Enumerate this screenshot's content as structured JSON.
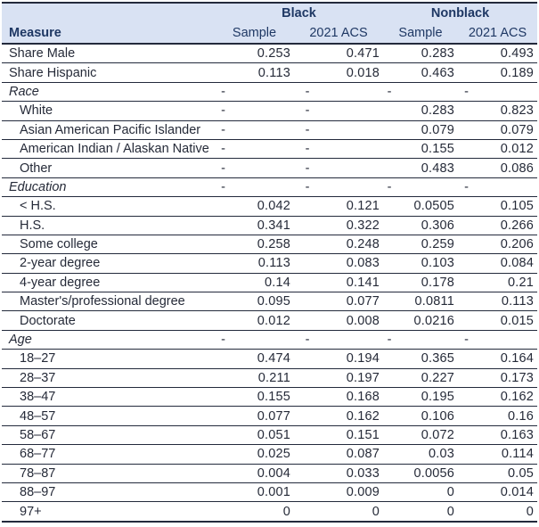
{
  "table": {
    "group_headers": [
      {
        "label": "Black"
      },
      {
        "label": "Nonblack"
      }
    ],
    "measure_header": "Measure",
    "sub_headers": [
      "Sample",
      "2021 ACS",
      "Sample",
      "2021 ACS"
    ],
    "rows": [
      {
        "label": "Share Male",
        "type": "row",
        "indent": false,
        "values": [
          "0.253",
          "0.471",
          "0.283",
          "0.493"
        ]
      },
      {
        "label": "Share Hispanic",
        "type": "row",
        "indent": false,
        "values": [
          "0.113",
          "0.018",
          "0.463",
          "0.189"
        ]
      },
      {
        "label": "Race",
        "type": "section",
        "indent": false,
        "values": [
          "-",
          "-",
          "-",
          "-"
        ]
      },
      {
        "label": "White",
        "type": "row",
        "indent": true,
        "values": [
          "-",
          "-",
          "0.283",
          "0.823"
        ]
      },
      {
        "label": "Asian American Pacific Islander",
        "type": "row",
        "indent": true,
        "values": [
          "-",
          "-",
          "0.079",
          "0.079"
        ]
      },
      {
        "label": "American Indian / Alaskan Native",
        "type": "row",
        "indent": true,
        "values": [
          "-",
          "-",
          "0.155",
          "0.012"
        ]
      },
      {
        "label": "Other",
        "type": "row",
        "indent": true,
        "values": [
          "-",
          "-",
          "0.483",
          "0.086"
        ]
      },
      {
        "label": "Education",
        "type": "section",
        "indent": false,
        "values": [
          "-",
          "-",
          "-",
          "-"
        ]
      },
      {
        "label": "< H.S.",
        "type": "row",
        "indent": true,
        "values": [
          "0.042",
          "0.121",
          "0.0505",
          "0.105"
        ]
      },
      {
        "label": "H.S.",
        "type": "row",
        "indent": true,
        "values": [
          "0.341",
          "0.322",
          "0.306",
          "0.266"
        ]
      },
      {
        "label": "Some college",
        "type": "row",
        "indent": true,
        "values": [
          "0.258",
          "0.248",
          "0.259",
          "0.206"
        ]
      },
      {
        "label": "2-year degree",
        "type": "row",
        "indent": true,
        "values": [
          "0.113",
          "0.083",
          "0.103",
          "0.084"
        ]
      },
      {
        "label": "4-year degree",
        "type": "row",
        "indent": true,
        "values": [
          "0.14",
          "0.141",
          "0.178",
          "0.21"
        ]
      },
      {
        "label": "Master's/professional degree",
        "type": "row",
        "indent": true,
        "values": [
          "0.095",
          "0.077",
          "0.0811",
          "0.113"
        ]
      },
      {
        "label": "Doctorate",
        "type": "row",
        "indent": true,
        "values": [
          "0.012",
          "0.008",
          "0.0216",
          "0.015"
        ]
      },
      {
        "label": "Age",
        "type": "section",
        "indent": false,
        "values": [
          "-",
          "-",
          "-",
          "-"
        ]
      },
      {
        "label": "18–27",
        "type": "row",
        "indent": true,
        "values": [
          "0.474",
          "0.194",
          "0.365",
          "0.164"
        ]
      },
      {
        "label": "28–37",
        "type": "row",
        "indent": true,
        "values": [
          "0.211",
          "0.197",
          "0.227",
          "0.173"
        ]
      },
      {
        "label": "38–47",
        "type": "row",
        "indent": true,
        "values": [
          "0.155",
          "0.168",
          "0.195",
          "0.162"
        ]
      },
      {
        "label": "48–57",
        "type": "row",
        "indent": true,
        "values": [
          "0.077",
          "0.162",
          "0.106",
          "0.16"
        ]
      },
      {
        "label": "58–67",
        "type": "row",
        "indent": true,
        "values": [
          "0.051",
          "0.151",
          "0.072",
          "0.163"
        ]
      },
      {
        "label": "68–77",
        "type": "row",
        "indent": true,
        "values": [
          "0.025",
          "0.087",
          "0.03",
          "0.114"
        ]
      },
      {
        "label": "78–87",
        "type": "row",
        "indent": true,
        "values": [
          "0.004",
          "0.033",
          "0.0056",
          "0.05"
        ]
      },
      {
        "label": "88–97",
        "type": "row",
        "indent": true,
        "values": [
          "0.001",
          "0.009",
          "0",
          "0.014"
        ]
      },
      {
        "label": "97+",
        "type": "row",
        "indent": true,
        "values": [
          "0",
          "0",
          "0",
          "0"
        ]
      }
    ]
  },
  "colors": {
    "header_bg": "#d9e2f3",
    "header_text": "#1f3864",
    "body_text": "#252a38",
    "border": "#232a3c"
  }
}
